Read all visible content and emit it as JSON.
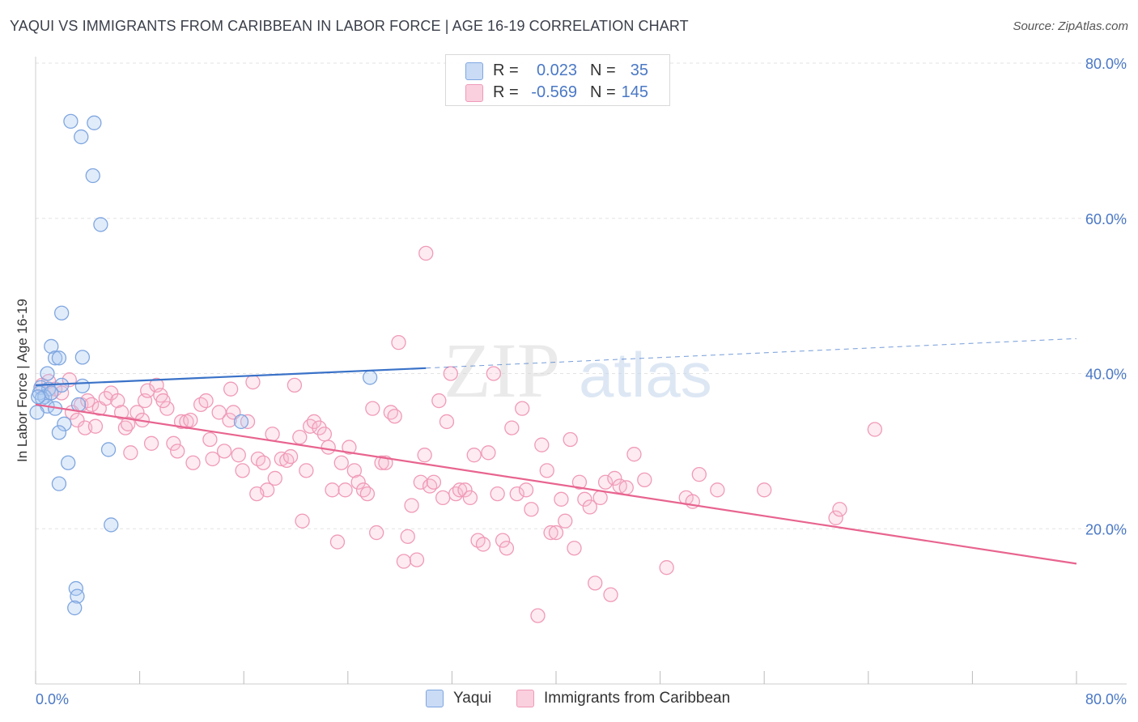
{
  "header": {
    "title": "YAQUI VS IMMIGRANTS FROM CARIBBEAN IN LABOR FORCE | AGE 16-19 CORRELATION CHART",
    "source": "Source: ZipAtlas.com"
  },
  "watermark": {
    "zip": "ZIP",
    "atlas": "atlas"
  },
  "legend": {
    "rows": [
      {
        "r_label": "R =",
        "r_value": "0.023",
        "n_label": "N =",
        "n_value": "35",
        "color": "#7fa6e0",
        "fill": "#c9dbf5"
      },
      {
        "r_label": "R =",
        "r_value": "-0.569",
        "n_label": "N =",
        "n_value": "145",
        "color": "#f09ab8",
        "fill": "#fad0de"
      }
    ]
  },
  "bottom_legend": {
    "series1": "Yaqui",
    "series2": "Immigrants from Caribbean"
  },
  "colors": {
    "yaqui_stroke": "#7fa6e0",
    "yaqui_fill": "rgba(170,200,240,0.35)",
    "yaqui_line": "#3a72c8",
    "carib_stroke": "#f09ab8",
    "carib_fill": "rgba(248,190,210,0.30)",
    "carib_line": "#e8648f",
    "grid": "#e3e3e3",
    "axis_text": "#4a78c5"
  },
  "chart_data": {
    "type": "scatter",
    "title": "YAQUI VS IMMIGRANTS FROM CARIBBEAN IN LABOR FORCE | AGE 16-19 CORRELATION CHART",
    "xlabel": "",
    "ylabel": "In Labor Force | Age 16-19",
    "xlim": [
      0,
      80
    ],
    "ylim": [
      0,
      80
    ],
    "x_tick_labels": [
      "0.0%",
      "80.0%"
    ],
    "y_ticks": [
      20,
      40,
      60,
      80
    ],
    "y_tick_labels": [
      "20.0%",
      "40.0%",
      "60.0%",
      "80.0%"
    ],
    "grid": true,
    "legend_position": "top-center",
    "series": [
      {
        "name": "Yaqui",
        "R": 0.023,
        "N": 35,
        "trend": {
          "x": [
            0,
            30
          ],
          "y": [
            38.5,
            40.7
          ],
          "extend_dashed_to": [
            80,
            44.5
          ]
        },
        "points": [
          [
            2.7,
            72.5
          ],
          [
            4.5,
            72.3
          ],
          [
            3.5,
            70.5
          ],
          [
            4.4,
            65.5
          ],
          [
            5.0,
            59.2
          ],
          [
            2.0,
            47.8
          ],
          [
            1.2,
            43.5
          ],
          [
            1.5,
            42.0
          ],
          [
            1.8,
            42.0
          ],
          [
            3.6,
            42.1
          ],
          [
            0.9,
            40.0
          ],
          [
            0.4,
            38.2
          ],
          [
            1.0,
            38.0
          ],
          [
            2.0,
            38.5
          ],
          [
            3.6,
            38.4
          ],
          [
            0.3,
            37.5
          ],
          [
            0.7,
            37.0
          ],
          [
            0.5,
            36.8
          ],
          [
            1.2,
            37.5
          ],
          [
            0.9,
            35.8
          ],
          [
            1.5,
            35.5
          ],
          [
            0.1,
            35.0
          ],
          [
            3.3,
            36.0
          ],
          [
            2.2,
            33.5
          ],
          [
            1.8,
            32.4
          ],
          [
            15.8,
            33.8
          ],
          [
            25.7,
            39.5
          ],
          [
            2.5,
            28.5
          ],
          [
            5.6,
            30.2
          ],
          [
            1.8,
            25.8
          ],
          [
            5.8,
            20.5
          ],
          [
            3.1,
            12.3
          ],
          [
            3.2,
            11.3
          ],
          [
            3.0,
            9.8
          ],
          [
            0.2,
            37.0
          ]
        ]
      },
      {
        "name": "Immigrants from Caribbean",
        "R": -0.569,
        "N": 145,
        "trend": {
          "x": [
            0,
            80
          ],
          "y": [
            36.0,
            15.5
          ]
        },
        "points": [
          [
            0.5,
            38.5
          ],
          [
            1.0,
            39.0
          ],
          [
            1.5,
            38.0
          ],
          [
            2.0,
            37.5
          ],
          [
            2.6,
            39.2
          ],
          [
            1.2,
            37.5
          ],
          [
            2.8,
            35.0
          ],
          [
            3.2,
            34.0
          ],
          [
            3.5,
            36.0
          ],
          [
            3.8,
            33.0
          ],
          [
            4.0,
            36.5
          ],
          [
            4.3,
            36.0
          ],
          [
            4.6,
            33.2
          ],
          [
            4.9,
            35.5
          ],
          [
            5.4,
            36.8
          ],
          [
            5.8,
            37.5
          ],
          [
            6.3,
            36.5
          ],
          [
            6.6,
            35.0
          ],
          [
            6.9,
            33.0
          ],
          [
            7.1,
            33.5
          ],
          [
            7.3,
            29.8
          ],
          [
            7.8,
            35.0
          ],
          [
            8.2,
            34.0
          ],
          [
            8.4,
            36.5
          ],
          [
            8.6,
            37.8
          ],
          [
            8.9,
            31.0
          ],
          [
            9.3,
            38.5
          ],
          [
            9.6,
            37.2
          ],
          [
            10.1,
            35.5
          ],
          [
            10.6,
            31.0
          ],
          [
            10.9,
            30.0
          ],
          [
            11.2,
            33.8
          ],
          [
            11.6,
            33.8
          ],
          [
            11.9,
            34.0
          ],
          [
            12.1,
            28.5
          ],
          [
            12.7,
            36.0
          ],
          [
            13.1,
            36.5
          ],
          [
            13.4,
            31.5
          ],
          [
            13.6,
            29.0
          ],
          [
            14.1,
            35.0
          ],
          [
            14.5,
            30.0
          ],
          [
            14.9,
            34.0
          ],
          [
            15.2,
            35.0
          ],
          [
            15.6,
            29.5
          ],
          [
            15.9,
            27.5
          ],
          [
            16.3,
            33.8
          ],
          [
            16.7,
            38.9
          ],
          [
            17.1,
            29.0
          ],
          [
            17.5,
            28.5
          ],
          [
            17.8,
            25.0
          ],
          [
            18.2,
            32.2
          ],
          [
            18.4,
            26.5
          ],
          [
            18.9,
            29.0
          ],
          [
            19.3,
            28.8
          ],
          [
            19.6,
            29.3
          ],
          [
            19.9,
            38.5
          ],
          [
            20.3,
            31.8
          ],
          [
            20.8,
            27.5
          ],
          [
            21.1,
            33.2
          ],
          [
            21.4,
            33.8
          ],
          [
            21.8,
            33.0
          ],
          [
            22.2,
            32.2
          ],
          [
            22.5,
            30.5
          ],
          [
            22.8,
            25.0
          ],
          [
            23.2,
            18.3
          ],
          [
            23.5,
            28.5
          ],
          [
            23.8,
            25.0
          ],
          [
            24.1,
            30.5
          ],
          [
            24.5,
            27.5
          ],
          [
            24.8,
            26.0
          ],
          [
            25.2,
            25.0
          ],
          [
            25.5,
            24.5
          ],
          [
            25.9,
            35.5
          ],
          [
            26.2,
            19.5
          ],
          [
            26.6,
            28.5
          ],
          [
            26.9,
            28.5
          ],
          [
            27.3,
            35.0
          ],
          [
            27.6,
            34.5
          ],
          [
            27.9,
            44.0
          ],
          [
            28.3,
            15.8
          ],
          [
            28.6,
            19.0
          ],
          [
            28.9,
            23.0
          ],
          [
            29.3,
            16.0
          ],
          [
            29.6,
            26.0
          ],
          [
            29.9,
            29.5
          ],
          [
            30.3,
            25.5
          ],
          [
            30.6,
            26.0
          ],
          [
            31.0,
            36.5
          ],
          [
            31.3,
            24.0
          ],
          [
            31.6,
            33.8
          ],
          [
            31.9,
            40.0
          ],
          [
            32.3,
            24.5
          ],
          [
            32.6,
            25.0
          ],
          [
            33.0,
            25.0
          ],
          [
            33.4,
            24.0
          ],
          [
            33.7,
            29.5
          ],
          [
            34.0,
            18.5
          ],
          [
            34.4,
            18.0
          ],
          [
            34.8,
            29.8
          ],
          [
            35.2,
            40.0
          ],
          [
            35.5,
            24.5
          ],
          [
            35.9,
            18.5
          ],
          [
            36.2,
            17.5
          ],
          [
            36.6,
            33.0
          ],
          [
            37.0,
            24.5
          ],
          [
            37.4,
            35.5
          ],
          [
            37.7,
            25.0
          ],
          [
            38.1,
            22.5
          ],
          [
            38.6,
            8.8
          ],
          [
            38.9,
            30.8
          ],
          [
            39.3,
            27.5
          ],
          [
            39.6,
            19.5
          ],
          [
            40.0,
            19.5
          ],
          [
            40.4,
            23.8
          ],
          [
            40.7,
            21.0
          ],
          [
            41.1,
            31.5
          ],
          [
            41.4,
            17.5
          ],
          [
            41.8,
            26.0
          ],
          [
            42.2,
            23.8
          ],
          [
            42.6,
            22.8
          ],
          [
            43.0,
            13.0
          ],
          [
            43.4,
            24.0
          ],
          [
            43.8,
            26.0
          ],
          [
            44.2,
            11.5
          ],
          [
            44.5,
            26.5
          ],
          [
            44.9,
            25.5
          ],
          [
            45.4,
            25.3
          ],
          [
            46.0,
            29.6
          ],
          [
            46.8,
            26.3
          ],
          [
            48.5,
            15.0
          ],
          [
            50.0,
            24.0
          ],
          [
            50.5,
            23.5
          ],
          [
            51.0,
            27.0
          ],
          [
            52.4,
            25.0
          ],
          [
            56.0,
            25.0
          ],
          [
            61.5,
            21.4
          ],
          [
            61.8,
            22.5
          ],
          [
            64.5,
            32.8
          ],
          [
            30.0,
            55.5
          ],
          [
            15.0,
            38.0
          ],
          [
            9.8,
            36.5
          ],
          [
            20.5,
            21.0
          ],
          [
            17.0,
            24.5
          ]
        ]
      }
    ]
  }
}
